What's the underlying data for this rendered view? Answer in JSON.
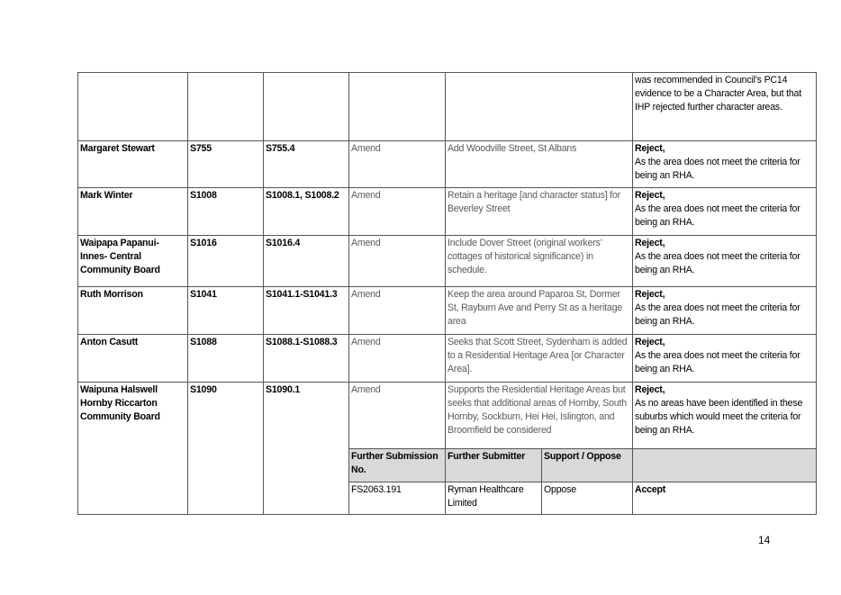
{
  "table": {
    "continued_row": {
      "decision": "was recommended in Council’s PC14 evidence to be a Character Area, but that IHP rejected further character areas."
    },
    "rows": [
      {
        "submitter": "Margaret Stewart",
        "sub_no": "S755",
        "point": "S755.4",
        "position": "Amend",
        "relief": "Add Woodville Street, St Albans",
        "decision": "Reject,",
        "reason": "As the area does not meet the criteria for being an RHA."
      },
      {
        "submitter": "Mark Winter",
        "sub_no": "S1008",
        "point": "S1008.1, S1008.2",
        "position": "Amend",
        "relief": "Retain a heritage [and character status] for Beverley Street",
        "decision": "Reject,",
        "reason": "As the area does not meet the criteria for being an RHA."
      },
      {
        "submitter": "Waipapa Papanui-Innes- Central Community Board",
        "sub_no": "S1016",
        "point": "S1016.4",
        "position": "Amend",
        "relief": "Include Dover Street (original workers’ cottages of historical significance) in schedule.",
        "decision": "Reject,",
        "reason": "As the area does not meet the criteria for being an RHA."
      },
      {
        "submitter": "Ruth Morrison",
        "sub_no": "S1041",
        "point": "S1041.1-S1041.3",
        "position": "Amend",
        "relief": "Keep the area around Paparoa St, Dormer St, Rayburn Ave and Perry St as a heritage area",
        "decision": "Reject,",
        "reason": "As the area does not meet the criteria for being an RHA."
      },
      {
        "submitter": "Anton Casutt",
        "sub_no": "S1088",
        "point": "S1088.1-S1088.3",
        "position": "Amend",
        "relief": "Seeks that Scott Street, Sydenham is added to a Residential Heritage Area [or Character Area].",
        "decision": "Reject,",
        "reason": "As the area does not meet the criteria for being an RHA."
      },
      {
        "submitter": "Waipuna Halswell Hornby Riccarton Community Board",
        "sub_no": "S1090",
        "point": "S1090.1",
        "position": "Amend",
        "relief": "Supports the Residential Heritage Areas but seeks that additional areas of Hornby, South Hornby, Sockburn, Hei Hei, Islington, and Broomfield be considered",
        "decision": "Reject,",
        "reason": "As no areas have been identified in these suburbs which would meet the criteria for being an RHA."
      }
    ],
    "further_header": {
      "no": "Further Submission No.",
      "submitter": "Further Submitter",
      "support": "Support / Oppose"
    },
    "further_row": {
      "no": "FS2063.191",
      "submitter": "Ryman Healthcare Limited",
      "support": "Oppose",
      "decision": "Accept"
    }
  },
  "page_number": "14"
}
